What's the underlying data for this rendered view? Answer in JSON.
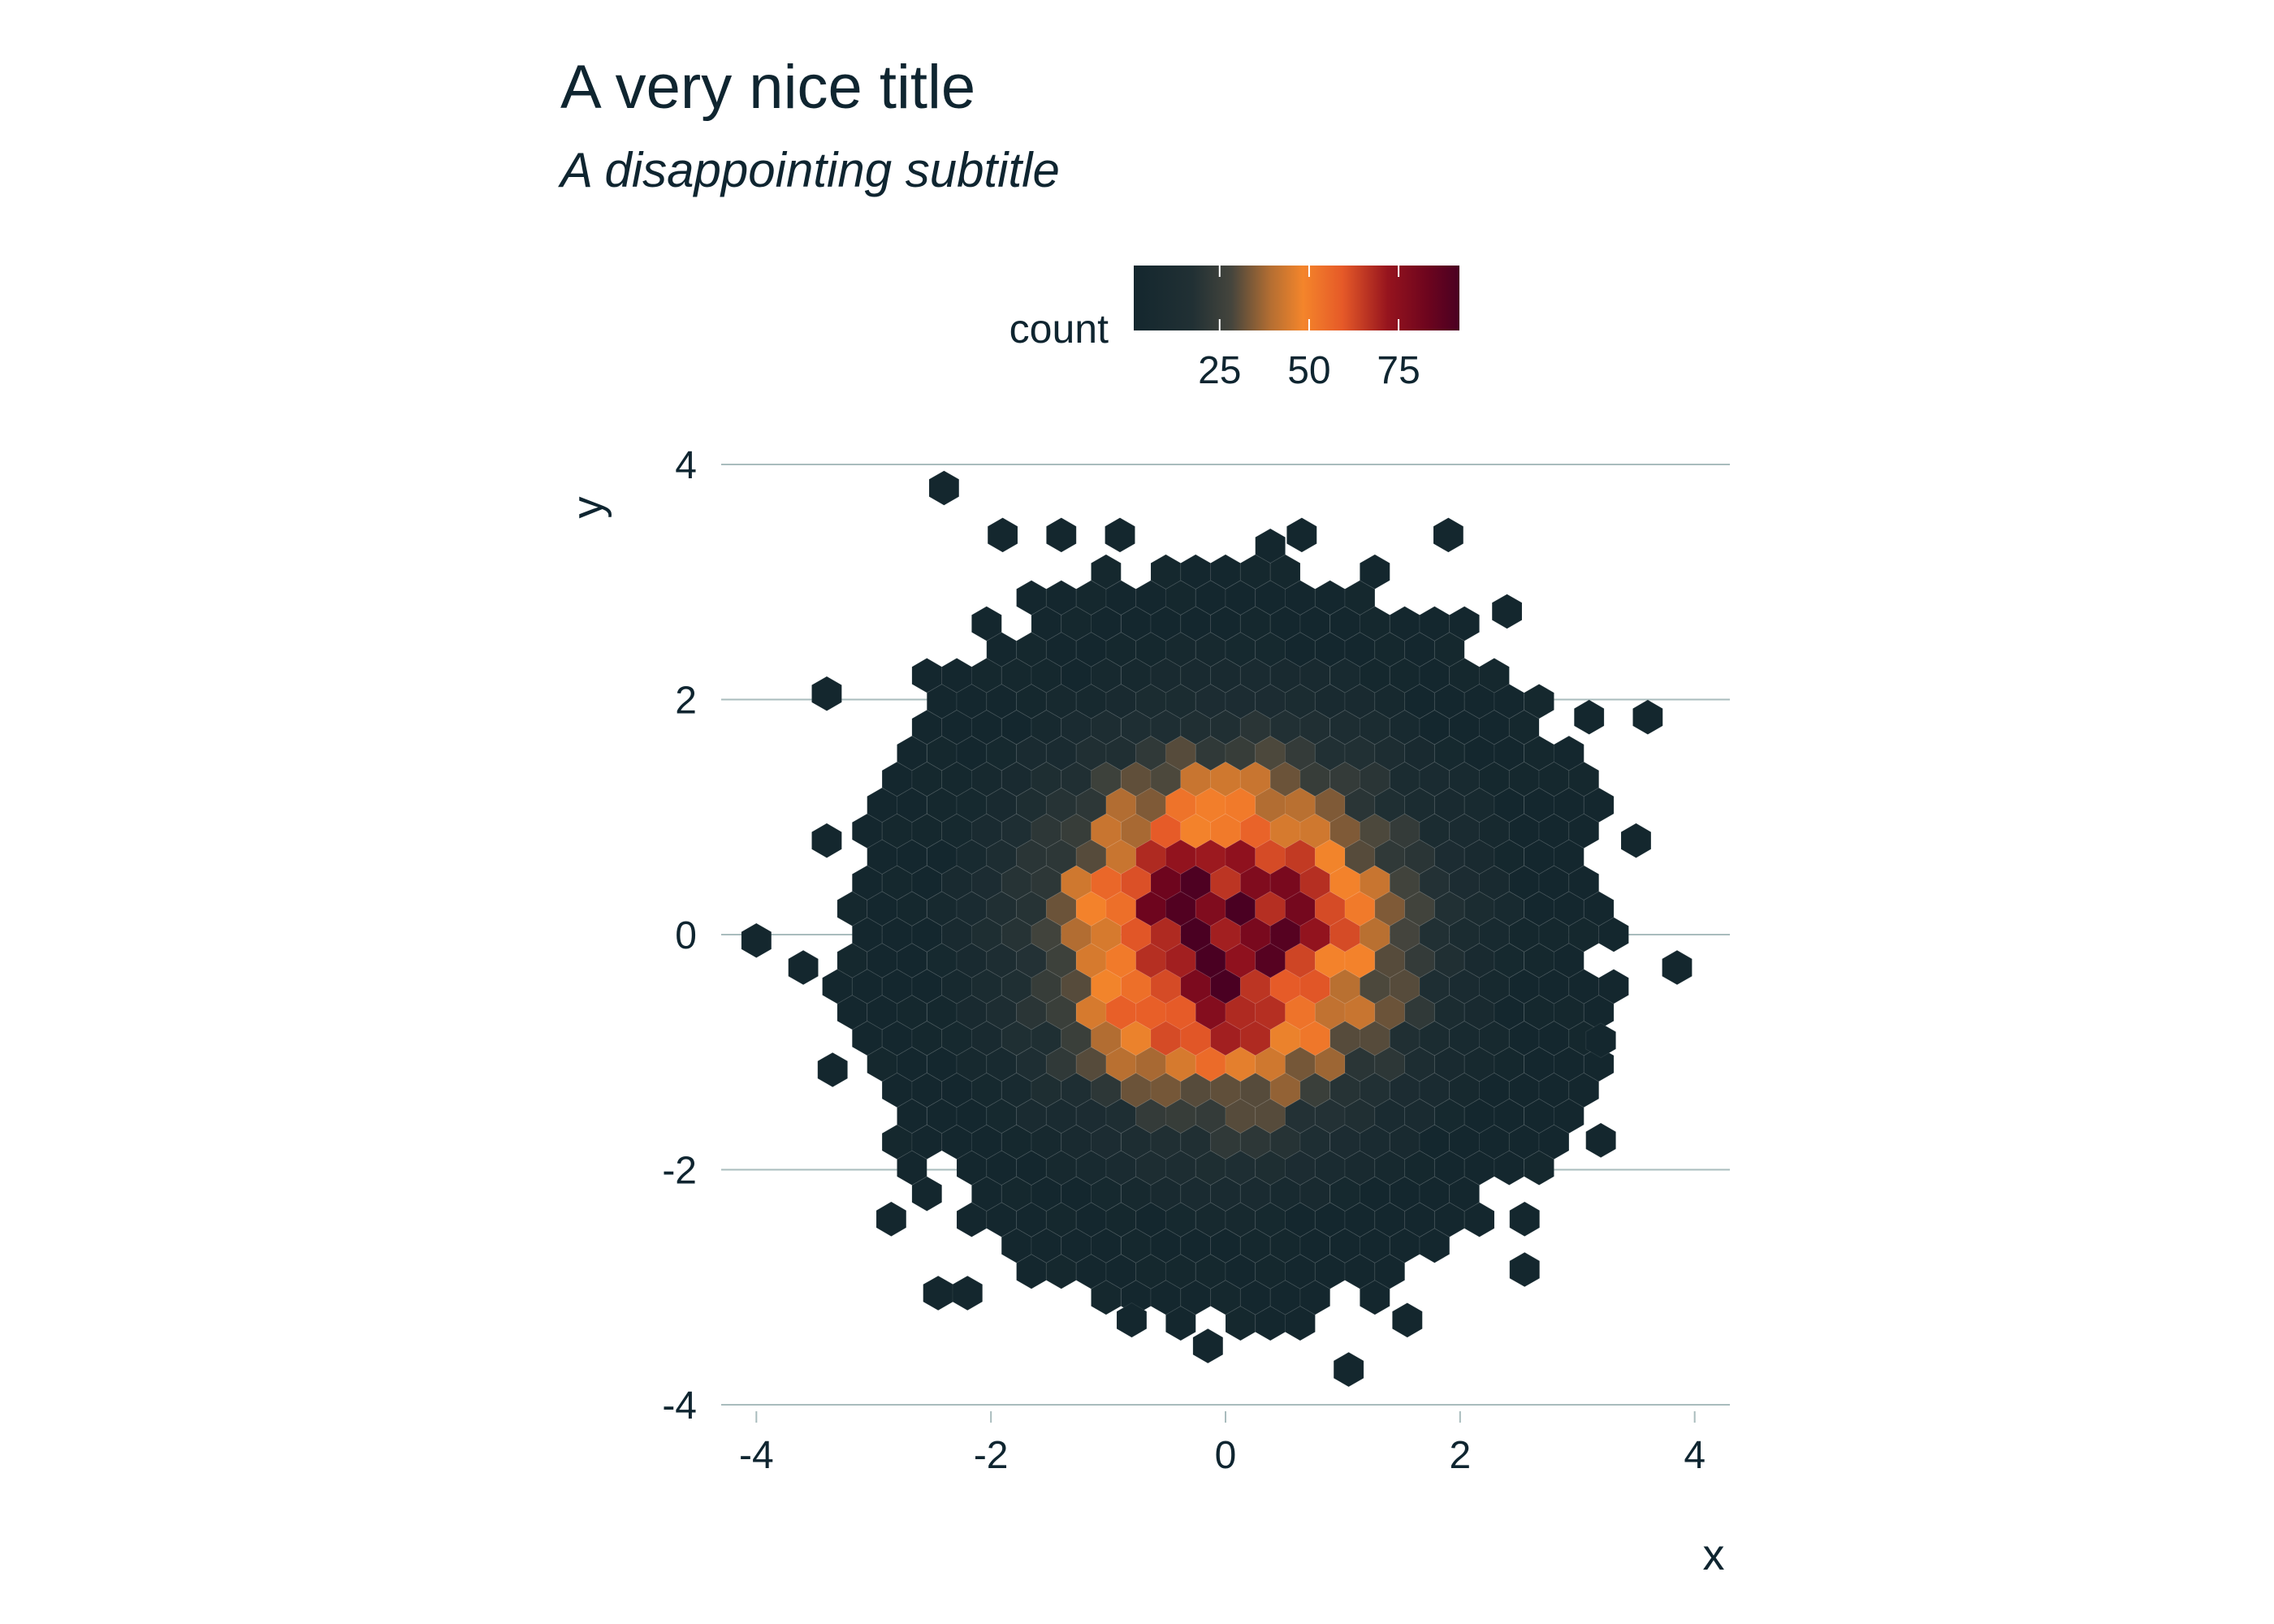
{
  "chart_data": {
    "type": "hexbin",
    "title": "A very nice title",
    "subtitle": "A disappointing subtitle",
    "xlabel": "x",
    "ylabel": "y",
    "xlim": [
      -4.3,
      4.3
    ],
    "ylim": [
      -4.0,
      4.0
    ],
    "x_ticks": [
      -4,
      -2,
      0,
      2,
      4
    ],
    "y_ticks": [
      -4,
      -2,
      0,
      2,
      4
    ],
    "grid": "horizontal major only",
    "legend": {
      "title": "count",
      "placement": "top",
      "ticks": [
        25,
        50,
        75
      ],
      "range": [
        1,
        92
      ],
      "colors": [
        "#14272e",
        "#45453d",
        "#f4852b",
        "#cc3b27",
        "#8e0c1d",
        "#4a0022"
      ]
    },
    "distribution": "bivariate standard normal, ~10,000 points",
    "peak_count": 92,
    "outlier_points": [
      [
        -2.4,
        3.8
      ],
      [
        -1.9,
        3.4
      ],
      [
        -1.4,
        3.4
      ],
      [
        -0.9,
        3.4
      ],
      [
        0.65,
        3.4
      ],
      [
        1.9,
        3.4
      ],
      [
        -3.4,
        2.05
      ],
      [
        3.1,
        1.85
      ],
      [
        3.6,
        1.85
      ],
      [
        2.4,
        2.75
      ],
      [
        -3.4,
        0.8
      ],
      [
        3.5,
        0.8
      ],
      [
        -4.0,
        -0.05
      ],
      [
        -3.6,
        -0.28
      ],
      [
        3.85,
        -0.28
      ],
      [
        -3.35,
        -1.15
      ],
      [
        3.2,
        -0.9
      ],
      [
        3.2,
        -1.75
      ],
      [
        -2.85,
        -2.42
      ],
      [
        2.55,
        -2.42
      ],
      [
        2.55,
        -2.85
      ],
      [
        -2.45,
        -3.05
      ],
      [
        -2.2,
        -3.05
      ],
      [
        -0.8,
        -3.28
      ],
      [
        1.55,
        -3.28
      ],
      [
        -0.15,
        -3.5
      ],
      [
        1.05,
        -3.7
      ]
    ]
  }
}
